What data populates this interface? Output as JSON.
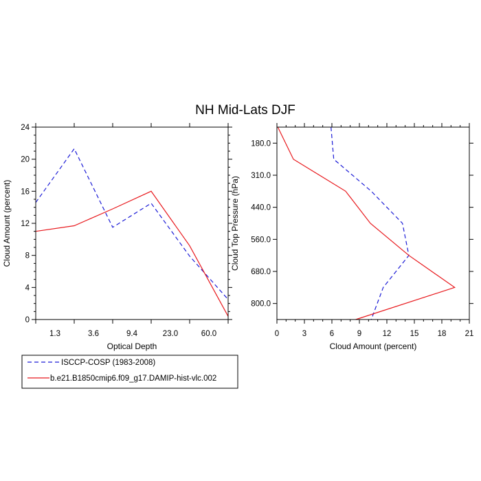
{
  "figure": {
    "title": "NH Mid-Lats DJF"
  },
  "chart_data": [
    {
      "type": "line",
      "xlabel": "Optical Depth",
      "ylabel": "Cloud Amount (percent)",
      "x_tick_labels": [
        "1.3",
        "3.6",
        "9.4",
        "23.0",
        "60.0"
      ],
      "y_ticks": [
        0,
        4,
        8,
        12,
        16,
        20,
        24
      ],
      "ylim": [
        0,
        24
      ],
      "series": [
        {
          "name": "ISCCP-COSP (1983-2008)",
          "color": "#1a1ad6",
          "dash": "dashed",
          "values": [
            14.6,
            21.3,
            11.5,
            14.5,
            7.9,
            2.5
          ]
        },
        {
          "name": "b.e21.B1850cmip6.f09_g17.DAMIP-hist-vlc.002",
          "color": "#e8181c",
          "dash": "solid",
          "values": [
            11.0,
            11.7,
            13.8,
            16.0,
            9.2,
            0.4
          ]
        }
      ]
    },
    {
      "type": "line",
      "xlabel": "Cloud Amount (percent)",
      "ylabel": "Cloud Top Pressure (hPa)",
      "x_ticks": [
        0,
        3,
        6,
        9,
        12,
        15,
        18,
        21
      ],
      "xlim": [
        0,
        21
      ],
      "y_tick_labels": [
        "180.0",
        "310.0",
        "440.0",
        "560.0",
        "680.0",
        "800.0"
      ],
      "series": [
        {
          "name": "ISCCP-COSP (1983-2008)",
          "color": "#1a1ad6",
          "dash": "dashed",
          "values": [
            5.9,
            6.2,
            10.3,
            13.7,
            14.4,
            11.6,
            10.3
          ]
        },
        {
          "name": "b.e21.B1850cmip6.f09_g17.DAMIP-hist-vlc.002",
          "color": "#e8181c",
          "dash": "solid",
          "values": [
            0.1,
            1.8,
            7.5,
            10.2,
            14.4,
            19.4,
            8.6
          ]
        }
      ]
    }
  ],
  "legend": {
    "items": [
      {
        "label": "ISCCP-COSP (1983-2008)",
        "color": "#1a1ad6",
        "dash": "dashed"
      },
      {
        "label": "b.e21.B1850cmip6.f09_g17.DAMIP-hist-vlc.002",
        "color": "#e8181c",
        "dash": "solid"
      }
    ]
  }
}
